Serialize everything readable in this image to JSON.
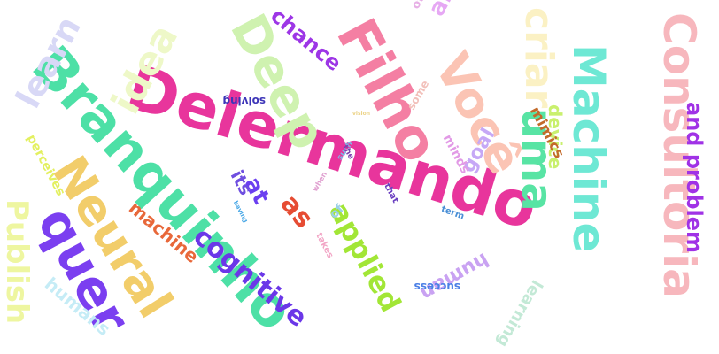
{
  "words": [
    {
      "text": "Delermando",
      "color": "#e8359c"
    },
    {
      "text": "Branquinho",
      "color": "#4de0a6"
    },
    {
      "text": "Neural",
      "color": "#f2cd6a"
    },
    {
      "text": "quer",
      "color": "#7b3ff0"
    },
    {
      "text": "Machine",
      "color": "#6ee8d4"
    },
    {
      "text": "Consultoria",
      "color": "#f7b7bd"
    },
    {
      "text": "Filho",
      "color": "#f47fa3"
    },
    {
      "text": "Você",
      "color": "#fbc4b4"
    },
    {
      "text": "Deep",
      "color": "#cff2b0"
    },
    {
      "text": "criar",
      "color": "#fbf1c4"
    },
    {
      "text": "uma",
      "color": "#58e4a4"
    },
    {
      "text": "idea",
      "color": "#eef8c8"
    },
    {
      "text": "learn",
      "color": "#d8d8f6"
    },
    {
      "text": "chance",
      "color": "#9d36e6"
    },
    {
      "text": "and",
      "color": "#e6a8f4"
    },
    {
      "text": "other",
      "color": "#e7b0e6"
    },
    {
      "text": "applied",
      "color": "#a2e636"
    },
    {
      "text": "cognitive",
      "color": "#6b37e8"
    },
    {
      "text": "as",
      "color": "#e64c33"
    },
    {
      "text": "at",
      "color": "#6b3ff0"
    },
    {
      "text": "its",
      "color": "#6f4fe0"
    },
    {
      "text": "machine",
      "color": "#e8683a"
    },
    {
      "text": "and problem",
      "color": "#a032e6"
    },
    {
      "text": "Publish",
      "color": "#eef6a0"
    },
    {
      "text": "humans",
      "color": "#c5ecf6"
    },
    {
      "text": "perceives",
      "color": "#e3f060"
    },
    {
      "text": "goal",
      "color": "#c6a8f6"
    },
    {
      "text": "device",
      "color": "#c9f06e"
    },
    {
      "text": "mimics",
      "color": "#c36a2a"
    },
    {
      "text": "human",
      "color": "#c9a2f2"
    },
    {
      "text": "learning",
      "color": "#c3e9d6"
    },
    {
      "text": "minds",
      "color": "#e29ae6"
    },
    {
      "text": "solving",
      "color": "#3d35b8"
    },
    {
      "text": "some",
      "color": "#f2c0ba"
    },
    {
      "text": "such",
      "color": "#7fb6e6"
    },
    {
      "text": "the",
      "color": "#7a3fb0"
    },
    {
      "text": "that",
      "color": "#6a3fc0"
    },
    {
      "text": "term",
      "color": "#4a8fd6"
    },
    {
      "text": "success",
      "color": "#4a7fe6"
    },
    {
      "text": "takes",
      "color": "#f2a6c6"
    },
    {
      "text": "of",
      "color": "#9ad0e6"
    },
    {
      "text": "when",
      "color": "#e0a0d0"
    },
    {
      "text": "having",
      "color": "#4aa8e6"
    },
    {
      "text": "vision",
      "color": "#ecd48a"
    }
  ]
}
